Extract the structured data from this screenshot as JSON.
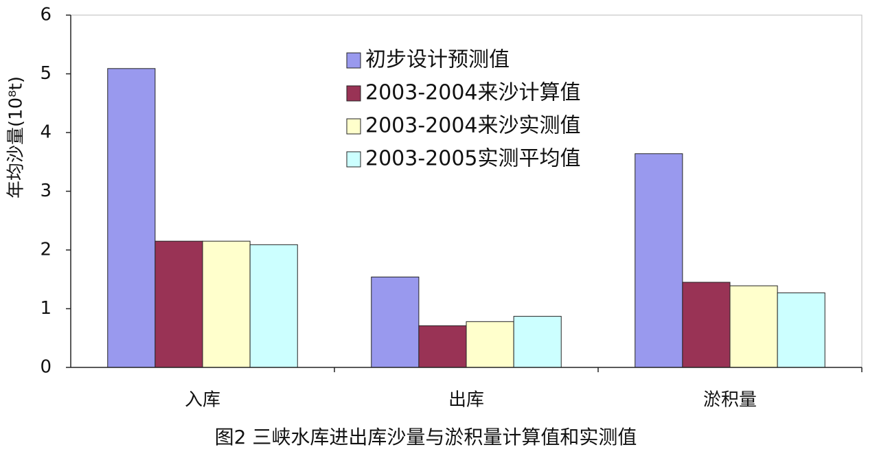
{
  "chart_data": {
    "type": "bar",
    "title": "图2 三峡水库进出库沙量与淤积量计算值和实测值",
    "y_label": "年均沙量(10⁸t)",
    "categories": [
      "入库",
      "出库",
      "淤积量"
    ],
    "series": [
      {
        "name": "初步设计预测值",
        "color": "#9999ee",
        "values": [
          5.09,
          1.54,
          3.64
        ]
      },
      {
        "name": "2003-2004来沙计算值",
        "color": "#993355",
        "values": [
          2.15,
          0.71,
          1.45
        ]
      },
      {
        "name": "2003-2004来沙实测值",
        "color": "#ffffcc",
        "values": [
          2.15,
          0.78,
          1.39
        ]
      },
      {
        "name": "2003-2005实测平均值",
        "color": "#ccffff",
        "values": [
          2.09,
          0.87,
          1.27
        ]
      }
    ],
    "ylim": [
      0,
      6
    ],
    "yticks": [
      0,
      1,
      2,
      3,
      4,
      5,
      6
    ],
    "grid": false,
    "legend": "top"
  }
}
